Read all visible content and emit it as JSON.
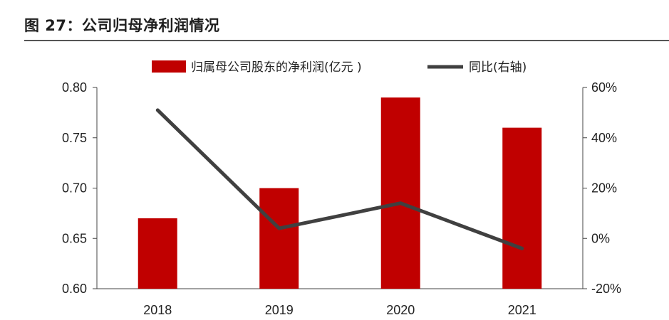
{
  "figure": {
    "title": "图 27：公司归母净利润情况"
  },
  "chart_data": {
    "type": "bar",
    "categories": [
      "2018",
      "2019",
      "2020",
      "2021"
    ],
    "series": [
      {
        "name": "归属母公司股东的净利润(亿元 )",
        "kind": "bar",
        "axis": "left",
        "values": [
          0.67,
          0.7,
          0.79,
          0.76
        ],
        "color": "#c00000"
      },
      {
        "name": "同比(右轴)",
        "kind": "line",
        "axis": "right",
        "values": [
          51,
          4,
          14,
          -4
        ],
        "color": "#404040"
      }
    ],
    "y_left": {
      "ylim": [
        0.6,
        0.8
      ],
      "ticks": [
        "0.60",
        "0.65",
        "0.70",
        "0.75",
        "0.80"
      ]
    },
    "y_right": {
      "ylim": [
        -20,
        60
      ],
      "ticks": [
        "-20%",
        "0%",
        "20%",
        "40%",
        "60%"
      ]
    },
    "legend_position": "top",
    "grid": false
  }
}
